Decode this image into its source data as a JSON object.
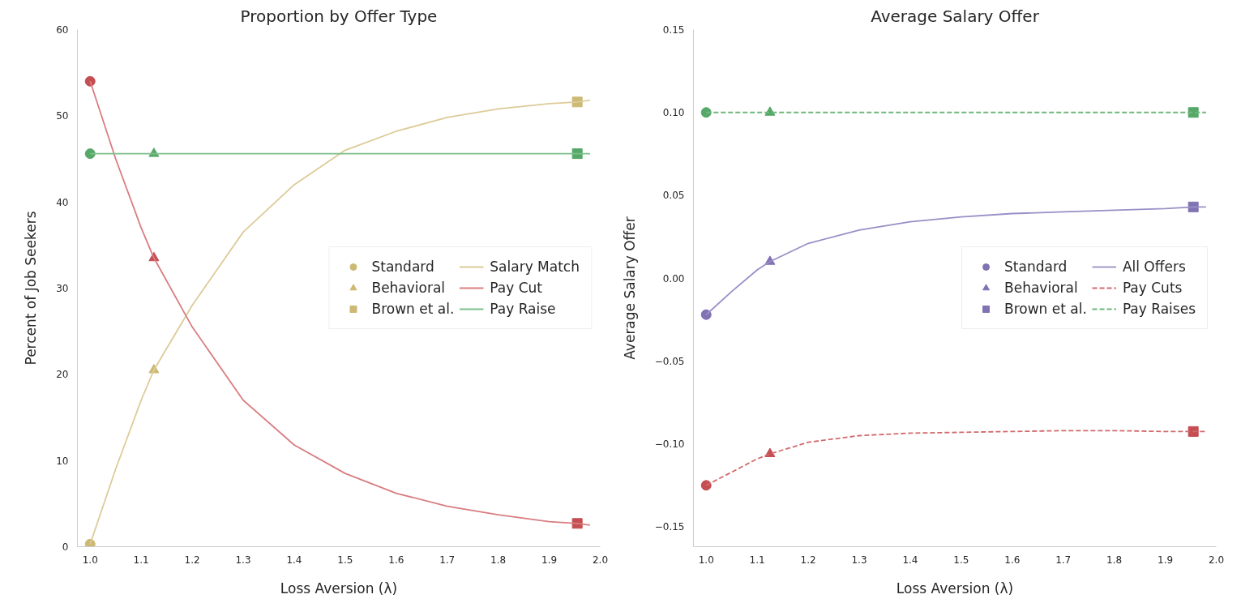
{
  "chart_data": [
    {
      "type": "line",
      "title": "Proportion by Offer Type",
      "xlabel": "Loss Aversion (λ)",
      "ylabel": "Percent of Job Seekers",
      "xlim": [
        0.975,
        2.0
      ],
      "ylim": [
        0,
        60
      ],
      "xticks": [
        {
          "value": 1.0,
          "label": "1.0"
        },
        {
          "value": 1.1,
          "label": "1.1"
        },
        {
          "value": 1.2,
          "label": "1.2"
        },
        {
          "value": 1.3,
          "label": "1.3"
        },
        {
          "value": 1.4,
          "label": "1.4"
        },
        {
          "value": 1.5,
          "label": "1.5"
        },
        {
          "value": 1.6,
          "label": "1.6"
        },
        {
          "value": 1.7,
          "label": "1.7"
        },
        {
          "value": 1.8,
          "label": "1.8"
        },
        {
          "value": 1.9,
          "label": "1.9"
        },
        {
          "value": 2.0,
          "label": "2.0"
        }
      ],
      "yticks": [
        0,
        10,
        20,
        30,
        40,
        50,
        60
      ],
      "grid": false,
      "legend": "right",
      "series": [
        {
          "name": "Standard",
          "type": "scatter",
          "marker": "circle",
          "x": [
            1.0,
            1.0,
            1.0
          ],
          "values": [
            0.3,
            54,
            45.6
          ],
          "colors": [
            "#ccb974",
            "#c44e52",
            "#55a868"
          ]
        },
        {
          "name": "Behavioral",
          "type": "scatter",
          "marker": "triangle",
          "x": [
            1.125,
            1.125,
            1.125
          ],
          "values": [
            20.5,
            33.5,
            45.6
          ],
          "colors": [
            "#ccb974",
            "#c44e52",
            "#55a868"
          ]
        },
        {
          "name": "Brown et al.",
          "type": "scatter",
          "marker": "square",
          "x": [
            1.955,
            1.955,
            1.955
          ],
          "values": [
            51.6,
            2.7,
            45.6
          ],
          "colors": [
            "#ccb974",
            "#c44e52",
            "#55a868"
          ]
        },
        {
          "name": "Salary Match",
          "line_style": "solid",
          "color": "#dccb98",
          "x": [
            1.0,
            1.05,
            1.1,
            1.125,
            1.2,
            1.3,
            1.4,
            1.5,
            1.6,
            1.7,
            1.8,
            1.9,
            1.955,
            1.98
          ],
          "values": [
            0.3,
            9,
            17,
            20.5,
            28,
            36.5,
            42,
            46,
            48.2,
            49.8,
            50.8,
            51.4,
            51.6,
            51.8
          ]
        },
        {
          "name": "Pay Cut",
          "line_style": "solid",
          "color": "#d97d80",
          "x": [
            1.0,
            1.05,
            1.1,
            1.125,
            1.2,
            1.3,
            1.4,
            1.5,
            1.6,
            1.7,
            1.8,
            1.9,
            1.955,
            1.98
          ],
          "values": [
            54,
            45,
            37,
            33.5,
            25.5,
            17,
            11.8,
            8.5,
            6.2,
            4.7,
            3.7,
            2.9,
            2.7,
            2.5
          ]
        },
        {
          "name": "Pay Raise",
          "line_style": "solid",
          "color": "#7cc08a",
          "x": [
            1.0,
            1.98
          ],
          "values": [
            45.6,
            45.6
          ]
        }
      ]
    },
    {
      "type": "line",
      "title": "Average Salary Offer",
      "xlabel": "Loss Aversion (λ)",
      "ylabel": "Average Salary Offer",
      "xlim": [
        0.975,
        2.0
      ],
      "ylim": [
        -0.162,
        0.15
      ],
      "xticks": [
        {
          "value": 1.0,
          "label": "1.0"
        },
        {
          "value": 1.1,
          "label": "1.1"
        },
        {
          "value": 1.2,
          "label": "1.2"
        },
        {
          "value": 1.3,
          "label": "1.3"
        },
        {
          "value": 1.4,
          "label": "1.4"
        },
        {
          "value": 1.5,
          "label": "1.5"
        },
        {
          "value": 1.6,
          "label": "1.6"
        },
        {
          "value": 1.7,
          "label": "1.7"
        },
        {
          "value": 1.8,
          "label": "1.8"
        },
        {
          "value": 1.9,
          "label": "1.9"
        },
        {
          "value": 2.0,
          "label": "2.0"
        }
      ],
      "yticks": [
        {
          "value": -0.15,
          "label": "−0.15"
        },
        {
          "value": -0.1,
          "label": "−0.10"
        },
        {
          "value": -0.05,
          "label": "−0.05"
        },
        {
          "value": 0.0,
          "label": "0.00"
        },
        {
          "value": 0.05,
          "label": "0.05"
        },
        {
          "value": 0.1,
          "label": "0.10"
        },
        {
          "value": 0.15,
          "label": "0.15"
        }
      ],
      "grid": false,
      "legend": "right",
      "series": [
        {
          "name": "Standard",
          "type": "scatter",
          "marker": "circle",
          "x": [
            1.0,
            1.0,
            1.0
          ],
          "values": [
            -0.022,
            -0.125,
            0.1
          ],
          "colors": [
            "#8172b2",
            "#c44e52",
            "#55a868"
          ]
        },
        {
          "name": "Behavioral",
          "type": "scatter",
          "marker": "triangle",
          "x": [
            1.125,
            1.125,
            1.125
          ],
          "values": [
            0.01,
            -0.106,
            0.1
          ],
          "colors": [
            "#8172b2",
            "#c44e52",
            "#55a868"
          ]
        },
        {
          "name": "Brown et al.",
          "type": "scatter",
          "marker": "square",
          "x": [
            1.955,
            1.955,
            1.955
          ],
          "values": [
            0.043,
            -0.0925,
            0.1
          ],
          "colors": [
            "#8172b2",
            "#c44e52",
            "#55a868"
          ]
        },
        {
          "name": "All Offers",
          "line_style": "solid",
          "color": "#9a8fc6",
          "x": [
            1.0,
            1.05,
            1.1,
            1.125,
            1.2,
            1.3,
            1.4,
            1.5,
            1.6,
            1.7,
            1.8,
            1.9,
            1.955,
            1.98
          ],
          "values": [
            -0.022,
            -0.008,
            0.005,
            0.01,
            0.021,
            0.029,
            0.034,
            0.037,
            0.039,
            0.04,
            0.041,
            0.042,
            0.043,
            0.043
          ]
        },
        {
          "name": "Pay Cuts",
          "line_style": "dashed",
          "color": "#d26a6d",
          "x": [
            1.0,
            1.05,
            1.1,
            1.125,
            1.2,
            1.3,
            1.4,
            1.5,
            1.6,
            1.7,
            1.8,
            1.9,
            1.955,
            1.98
          ],
          "values": [
            -0.125,
            -0.117,
            -0.109,
            -0.106,
            -0.099,
            -0.095,
            -0.0935,
            -0.093,
            -0.0925,
            -0.092,
            -0.092,
            -0.0925,
            -0.0925,
            -0.0925
          ]
        },
        {
          "name": "Pay Raises",
          "line_style": "dashed",
          "color": "#6cb87c",
          "x": [
            1.0,
            1.98
          ],
          "values": [
            0.1,
            0.1
          ]
        }
      ]
    }
  ]
}
